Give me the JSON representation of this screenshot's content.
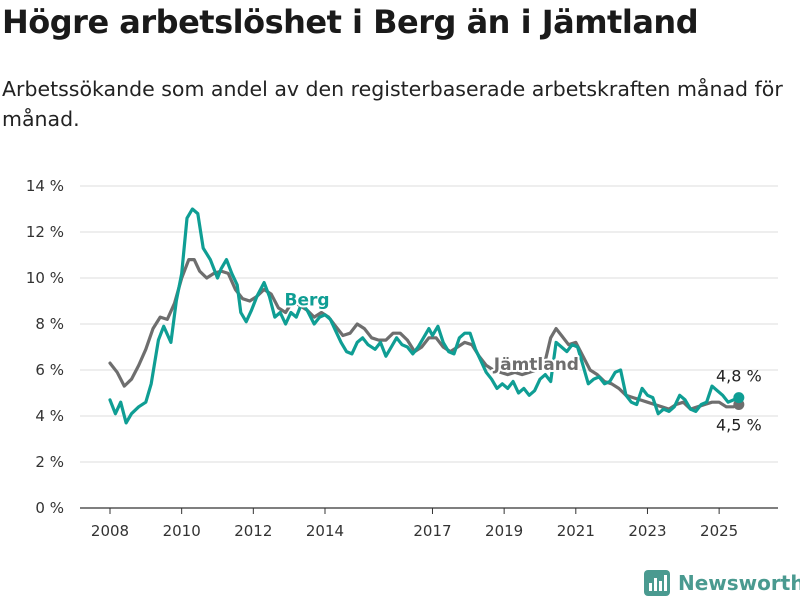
{
  "title": "Högre arbetslöshet i Berg än i Jämtland",
  "subtitle": "Arbetssökande som andel av den registerbaserade arbetskraften månad för månad.",
  "brand": {
    "name": "Newsworthy",
    "icon": "bar-chart-icon",
    "color": "#4a9a90"
  },
  "chart_data": {
    "type": "line",
    "title": "Högre arbetslöshet i Berg än i Jämtland",
    "xlabel": "",
    "ylabel": "",
    "x_range": [
      2008.0,
      2025.75
    ],
    "ylim": [
      0,
      14
    ],
    "y_ticks": [
      0,
      2,
      4,
      6,
      8,
      10,
      12,
      14
    ],
    "y_tick_labels": [
      "0 %",
      "2 %",
      "4 %",
      "6 %",
      "8 %",
      "10 %",
      "12 %",
      "14 %"
    ],
    "x_ticks": [
      2008,
      2010,
      2012,
      2014,
      2017,
      2019,
      2021,
      2023,
      2025
    ],
    "x_tick_labels": [
      "2008",
      "2010",
      "2012",
      "2014",
      "2017",
      "2019",
      "2021",
      "2023",
      "2025"
    ],
    "grid": "horizontal",
    "legend": "inline labels",
    "series": [
      {
        "name": "Berg",
        "color": "#0f9e94",
        "label_at": [
          2013.5,
          8.8
        ],
        "end_label": "4,8 %",
        "points": [
          [
            2008.0,
            4.7
          ],
          [
            2008.15,
            4.1
          ],
          [
            2008.3,
            4.6
          ],
          [
            2008.45,
            3.7
          ],
          [
            2008.6,
            4.1
          ],
          [
            2008.8,
            4.4
          ],
          [
            2009.0,
            4.6
          ],
          [
            2009.15,
            5.4
          ],
          [
            2009.35,
            7.3
          ],
          [
            2009.5,
            7.9
          ],
          [
            2009.7,
            7.2
          ],
          [
            2009.85,
            9.0
          ],
          [
            2010.0,
            10.2
          ],
          [
            2010.15,
            12.6
          ],
          [
            2010.3,
            13.0
          ],
          [
            2010.45,
            12.8
          ],
          [
            2010.6,
            11.3
          ],
          [
            2010.8,
            10.8
          ],
          [
            2011.0,
            10.0
          ],
          [
            2011.1,
            10.4
          ],
          [
            2011.25,
            10.8
          ],
          [
            2011.4,
            10.2
          ],
          [
            2011.55,
            9.7
          ],
          [
            2011.65,
            8.5
          ],
          [
            2011.8,
            8.1
          ],
          [
            2011.95,
            8.6
          ],
          [
            2012.1,
            9.2
          ],
          [
            2012.3,
            9.8
          ],
          [
            2012.45,
            9.2
          ],
          [
            2012.6,
            8.3
          ],
          [
            2012.75,
            8.5
          ],
          [
            2012.9,
            8.0
          ],
          [
            2013.05,
            8.5
          ],
          [
            2013.2,
            8.3
          ],
          [
            2013.35,
            8.9
          ],
          [
            2013.5,
            8.6
          ],
          [
            2013.7,
            8.0
          ],
          [
            2013.85,
            8.3
          ],
          [
            2014.0,
            8.4
          ],
          [
            2014.15,
            8.2
          ],
          [
            2014.3,
            7.7
          ],
          [
            2014.45,
            7.2
          ],
          [
            2014.6,
            6.8
          ],
          [
            2014.75,
            6.7
          ],
          [
            2014.9,
            7.2
          ],
          [
            2015.05,
            7.4
          ],
          [
            2015.2,
            7.1
          ],
          [
            2015.4,
            6.9
          ],
          [
            2015.55,
            7.2
          ],
          [
            2015.7,
            6.6
          ],
          [
            2015.85,
            7.0
          ],
          [
            2016.0,
            7.4
          ],
          [
            2016.15,
            7.1
          ],
          [
            2016.3,
            7.0
          ],
          [
            2016.45,
            6.7
          ],
          [
            2016.6,
            7.0
          ],
          [
            2016.75,
            7.4
          ],
          [
            2016.9,
            7.8
          ],
          [
            2017.0,
            7.5
          ],
          [
            2017.15,
            7.9
          ],
          [
            2017.3,
            7.2
          ],
          [
            2017.45,
            6.8
          ],
          [
            2017.6,
            6.7
          ],
          [
            2017.75,
            7.4
          ],
          [
            2017.9,
            7.6
          ],
          [
            2018.05,
            7.6
          ],
          [
            2018.2,
            6.9
          ],
          [
            2018.35,
            6.4
          ],
          [
            2018.5,
            5.9
          ],
          [
            2018.65,
            5.6
          ],
          [
            2018.8,
            5.2
          ],
          [
            2018.95,
            5.4
          ],
          [
            2019.1,
            5.2
          ],
          [
            2019.25,
            5.5
          ],
          [
            2019.4,
            5.0
          ],
          [
            2019.55,
            5.2
          ],
          [
            2019.7,
            4.9
          ],
          [
            2019.85,
            5.1
          ],
          [
            2020.0,
            5.6
          ],
          [
            2020.15,
            5.8
          ],
          [
            2020.3,
            5.5
          ],
          [
            2020.45,
            7.2
          ],
          [
            2020.6,
            7.0
          ],
          [
            2020.75,
            6.8
          ],
          [
            2020.9,
            7.1
          ],
          [
            2021.05,
            7.0
          ],
          [
            2021.2,
            6.2
          ],
          [
            2021.35,
            5.4
          ],
          [
            2021.5,
            5.6
          ],
          [
            2021.65,
            5.7
          ],
          [
            2021.8,
            5.4
          ],
          [
            2021.95,
            5.5
          ],
          [
            2022.1,
            5.9
          ],
          [
            2022.25,
            6.0
          ],
          [
            2022.4,
            4.9
          ],
          [
            2022.55,
            4.6
          ],
          [
            2022.7,
            4.5
          ],
          [
            2022.85,
            5.2
          ],
          [
            2023.0,
            4.9
          ],
          [
            2023.15,
            4.8
          ],
          [
            2023.3,
            4.1
          ],
          [
            2023.45,
            4.3
          ],
          [
            2023.6,
            4.2
          ],
          [
            2023.75,
            4.4
          ],
          [
            2023.9,
            4.9
          ],
          [
            2024.05,
            4.7
          ],
          [
            2024.2,
            4.3
          ],
          [
            2024.35,
            4.2
          ],
          [
            2024.5,
            4.5
          ],
          [
            2024.65,
            4.6
          ],
          [
            2024.8,
            5.3
          ],
          [
            2024.95,
            5.1
          ],
          [
            2025.1,
            4.9
          ],
          [
            2025.25,
            4.6
          ],
          [
            2025.4,
            4.7
          ],
          [
            2025.55,
            4.8
          ]
        ]
      },
      {
        "name": "Jämtland",
        "color": "#6e6e6e",
        "label_at": [
          2019.9,
          6.0
        ],
        "end_label": "4,5 %",
        "points": [
          [
            2008.0,
            6.3
          ],
          [
            2008.2,
            5.9
          ],
          [
            2008.4,
            5.3
          ],
          [
            2008.6,
            5.6
          ],
          [
            2008.8,
            6.2
          ],
          [
            2009.0,
            6.9
          ],
          [
            2009.2,
            7.8
          ],
          [
            2009.4,
            8.3
          ],
          [
            2009.6,
            8.2
          ],
          [
            2009.8,
            8.9
          ],
          [
            2010.0,
            10.0
          ],
          [
            2010.2,
            10.8
          ],
          [
            2010.35,
            10.8
          ],
          [
            2010.5,
            10.3
          ],
          [
            2010.7,
            10.0
          ],
          [
            2010.9,
            10.2
          ],
          [
            2011.1,
            10.3
          ],
          [
            2011.3,
            10.2
          ],
          [
            2011.5,
            9.5
          ],
          [
            2011.7,
            9.1
          ],
          [
            2011.9,
            9.0
          ],
          [
            2012.1,
            9.2
          ],
          [
            2012.3,
            9.5
          ],
          [
            2012.5,
            9.3
          ],
          [
            2012.7,
            8.7
          ],
          [
            2012.9,
            8.5
          ],
          [
            2013.1,
            9.0
          ],
          [
            2013.3,
            8.8
          ],
          [
            2013.5,
            8.6
          ],
          [
            2013.7,
            8.3
          ],
          [
            2013.9,
            8.5
          ],
          [
            2014.1,
            8.3
          ],
          [
            2014.3,
            7.9
          ],
          [
            2014.5,
            7.5
          ],
          [
            2014.7,
            7.6
          ],
          [
            2014.9,
            8.0
          ],
          [
            2015.1,
            7.8
          ],
          [
            2015.3,
            7.4
          ],
          [
            2015.5,
            7.3
          ],
          [
            2015.7,
            7.3
          ],
          [
            2015.9,
            7.6
          ],
          [
            2016.1,
            7.6
          ],
          [
            2016.3,
            7.3
          ],
          [
            2016.5,
            6.8
          ],
          [
            2016.7,
            7.0
          ],
          [
            2016.9,
            7.4
          ],
          [
            2017.1,
            7.4
          ],
          [
            2017.3,
            7.0
          ],
          [
            2017.5,
            6.8
          ],
          [
            2017.7,
            7.0
          ],
          [
            2017.9,
            7.2
          ],
          [
            2018.1,
            7.1
          ],
          [
            2018.3,
            6.6
          ],
          [
            2018.5,
            6.2
          ],
          [
            2018.7,
            6.0
          ],
          [
            2018.9,
            5.9
          ],
          [
            2019.1,
            5.8
          ],
          [
            2019.3,
            5.9
          ],
          [
            2019.5,
            5.8
          ],
          [
            2019.7,
            5.9
          ],
          [
            2019.9,
            6.0
          ],
          [
            2020.1,
            6.1
          ],
          [
            2020.3,
            7.4
          ],
          [
            2020.45,
            7.8
          ],
          [
            2020.6,
            7.5
          ],
          [
            2020.8,
            7.1
          ],
          [
            2021.0,
            7.2
          ],
          [
            2021.2,
            6.6
          ],
          [
            2021.4,
            6.0
          ],
          [
            2021.6,
            5.8
          ],
          [
            2021.8,
            5.5
          ],
          [
            2022.0,
            5.4
          ],
          [
            2022.2,
            5.2
          ],
          [
            2022.4,
            4.9
          ],
          [
            2022.6,
            4.8
          ],
          [
            2022.8,
            4.7
          ],
          [
            2023.0,
            4.6
          ],
          [
            2023.2,
            4.5
          ],
          [
            2023.4,
            4.4
          ],
          [
            2023.6,
            4.3
          ],
          [
            2023.8,
            4.5
          ],
          [
            2024.0,
            4.6
          ],
          [
            2024.2,
            4.3
          ],
          [
            2024.4,
            4.4
          ],
          [
            2024.6,
            4.5
          ],
          [
            2024.8,
            4.6
          ],
          [
            2025.0,
            4.6
          ],
          [
            2025.2,
            4.4
          ],
          [
            2025.4,
            4.4
          ],
          [
            2025.55,
            4.5
          ]
        ]
      }
    ]
  }
}
